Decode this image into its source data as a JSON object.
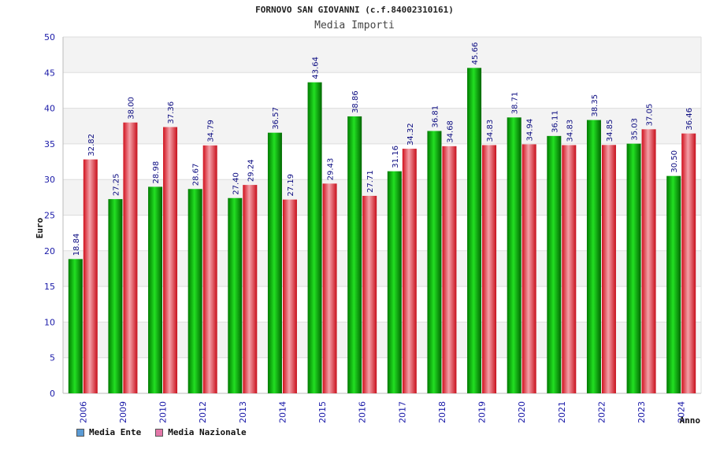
{
  "chart_data": {
    "type": "bar",
    "title": "FORNOVO SAN GIOVANNI (c.f.84002310161)",
    "subtitle": "Media Importi",
    "xlabel": "Anno",
    "ylabel": "Euro",
    "ylim": [
      0,
      50
    ],
    "yticks": [
      0,
      5,
      10,
      15,
      20,
      25,
      30,
      35,
      40,
      45,
      50
    ],
    "grid": true,
    "legend_placement": "bottom-left",
    "categories": [
      "2006",
      "2009",
      "2010",
      "2012",
      "2013",
      "2014",
      "2015",
      "2016",
      "2017",
      "2018",
      "2019",
      "2020",
      "2021",
      "2022",
      "2023",
      "2024"
    ],
    "series": [
      {
        "name": "Media Ente",
        "legend_color": "#5b9bd5",
        "bar_color": "#00b000",
        "values": [
          18.84,
          27.25,
          28.98,
          28.67,
          27.4,
          36.57,
          43.64,
          38.86,
          31.16,
          36.81,
          45.66,
          38.71,
          36.11,
          38.35,
          35.03,
          30.5
        ],
        "labels": [
          "18.84",
          "27.25",
          "28.98",
          "28.67",
          "27.40",
          "36.57",
          "43.64",
          "38.86",
          "31.16",
          "36.81",
          "45.66",
          "38.71",
          "36.11",
          "38.35",
          "35.03",
          "30.50"
        ]
      },
      {
        "name": "Media Nazionale",
        "legend_color": "#e377a8",
        "bar_color": "#e8202e",
        "values": [
          32.82,
          38.0,
          37.36,
          34.79,
          29.24,
          27.19,
          29.43,
          27.71,
          34.32,
          34.68,
          34.83,
          34.94,
          34.83,
          34.85,
          37.05,
          36.46
        ],
        "labels": [
          "32.82",
          "38.00",
          "37.36",
          "34.79",
          "29.24",
          "27.19",
          "29.43",
          "27.71",
          "34.32",
          "34.68",
          "34.83",
          "34.94",
          "34.83",
          "34.85",
          "37.05",
          "36.46"
        ]
      }
    ]
  }
}
